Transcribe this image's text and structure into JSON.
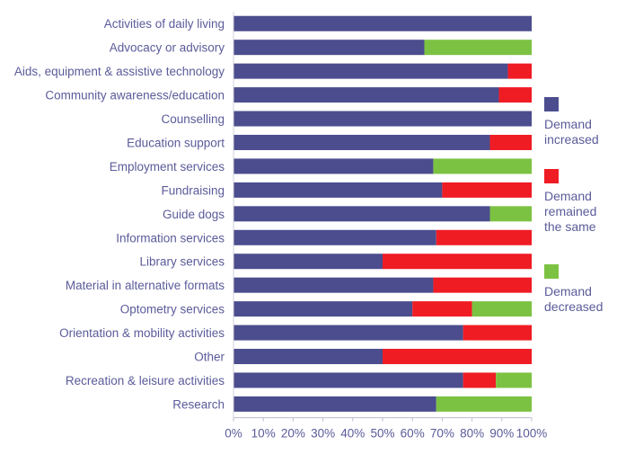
{
  "chart_data": {
    "type": "bar",
    "orientation": "horizontal",
    "stacked": true,
    "normalized_percent": true,
    "categories": [
      "Activities of daily living",
      "Advocacy or advisory",
      "Aids, equipment & assistive technology",
      "Community awareness/education",
      "Counselling",
      "Education support",
      "Employment services",
      "Fundraising",
      "Guide dogs",
      "Information services",
      "Library services",
      "Material in alternative formats",
      "Optometry services",
      "Orientation & mobility activities",
      "Other",
      "Recreation & leisure activities",
      "Research"
    ],
    "series": [
      {
        "name": "Demand increased",
        "color": "#4b4d8e",
        "values": [
          100,
          64,
          92,
          89,
          100,
          86,
          67,
          70,
          86,
          68,
          50,
          67,
          60,
          77,
          50,
          77,
          68
        ]
      },
      {
        "name": "Demand remained the same",
        "color": "#ef1c24",
        "values": [
          0,
          0,
          8,
          11,
          0,
          14,
          0,
          30,
          0,
          32,
          50,
          33,
          20,
          23,
          50,
          11,
          0
        ]
      },
      {
        "name": "Demand decreased",
        "color": "#7cc242",
        "values": [
          0,
          36,
          0,
          0,
          0,
          0,
          33,
          0,
          14,
          0,
          0,
          0,
          20,
          0,
          0,
          12,
          32
        ]
      }
    ],
    "x_ticks": [
      "0%",
      "10%",
      "20%",
      "30%",
      "40%",
      "50%",
      "60%",
      "70%",
      "80%",
      "90%",
      "100%"
    ],
    "xlim": [
      0,
      100
    ],
    "grid": false,
    "legend_position": "right",
    "title": "",
    "xlabel": "",
    "ylabel": ""
  },
  "legend": [
    {
      "label": "Demand\nincreased",
      "color": "#4b4d8e"
    },
    {
      "label": "Demand\nremained\nthe same",
      "color": "#ef1c24"
    },
    {
      "label": "Demand\ndecreased",
      "color": "#7cc242"
    }
  ]
}
